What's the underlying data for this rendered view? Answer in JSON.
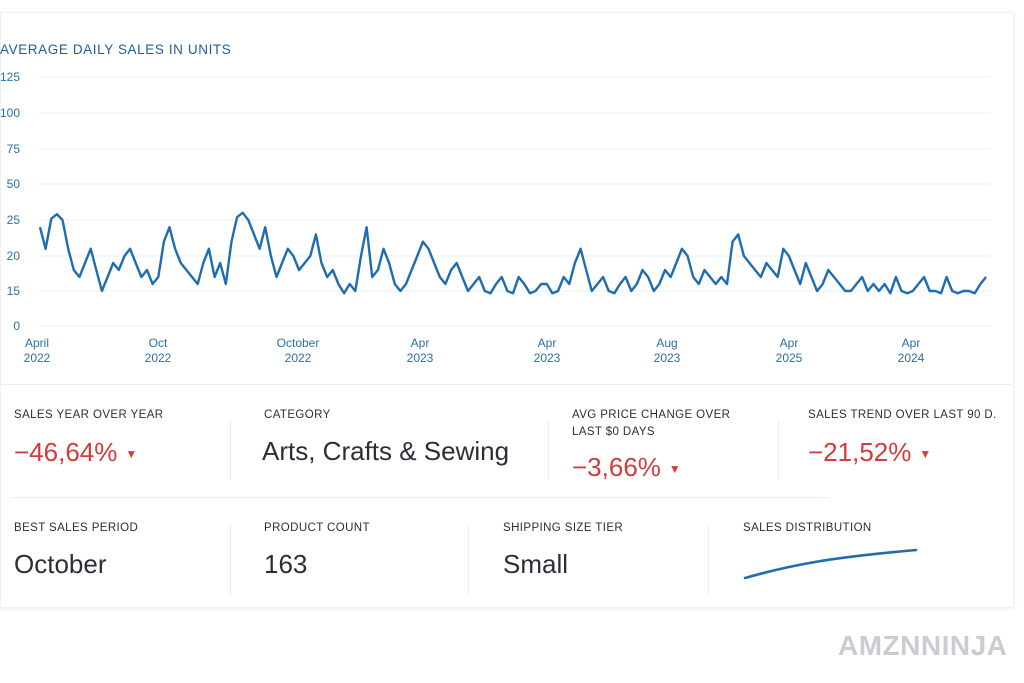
{
  "chart_data": {
    "type": "line",
    "title": "AVERAGE DAILY SALES IN UNITS",
    "xlabel": "",
    "ylabel": "",
    "y_tick_labels": [
      "125",
      "100",
      "75",
      "50",
      "25",
      "20",
      "15",
      "0"
    ],
    "x_tick_labels": [
      {
        "month": "April",
        "year": "2022"
      },
      {
        "month": "Oct",
        "year": "2022"
      },
      {
        "month": "October",
        "year": "2022"
      },
      {
        "month": "Apr",
        "year": "2023"
      },
      {
        "month": "Apr",
        "year": "2023"
      },
      {
        "month": "Aug",
        "year": "2023"
      },
      {
        "month": "Apr",
        "year": "2025"
      },
      {
        "month": "Apr",
        "year": "2024"
      }
    ],
    "grid": true,
    "series": [
      {
        "values": [
          24,
          21,
          26,
          29,
          25,
          21,
          18,
          17,
          19,
          21,
          18,
          15,
          17,
          19,
          18,
          20,
          21,
          19,
          17,
          18,
          16,
          17,
          22,
          24,
          21,
          19,
          18,
          17,
          16,
          19,
          21,
          17,
          19,
          16,
          22,
          27,
          30,
          25,
          23,
          21,
          24,
          20,
          17,
          19,
          21,
          20,
          18,
          19,
          20,
          23,
          19,
          17,
          18,
          16,
          14,
          16,
          15,
          20,
          24,
          17,
          18,
          21,
          19,
          16,
          15,
          16,
          18,
          20,
          22,
          21,
          19,
          17,
          16,
          18,
          19,
          17,
          15,
          16,
          17,
          15,
          14,
          16,
          17,
          15,
          14,
          17,
          16,
          14,
          15,
          16,
          16,
          14,
          15,
          17,
          16,
          19,
          21,
          18,
          15,
          16,
          17,
          15,
          14,
          16,
          17,
          15,
          16,
          18,
          17,
          15,
          16,
          18,
          17,
          19,
          21,
          20,
          17,
          16,
          18,
          17,
          16,
          17,
          16,
          22,
          23,
          20,
          19,
          18,
          17,
          19,
          18,
          17,
          21,
          20,
          18,
          16,
          19,
          17,
          15,
          16,
          18,
          17,
          16,
          15,
          15,
          16,
          17,
          15,
          16,
          15,
          16,
          14,
          17,
          15,
          14,
          15,
          16,
          17,
          15,
          15,
          14,
          17,
          15,
          14,
          15,
          15,
          14,
          16,
          17
        ]
      }
    ]
  },
  "metrics": {
    "sales_yoy": {
      "label": "SALES YEAR OVER YEAR",
      "value": "−46,64%"
    },
    "category": {
      "label": "CATEGORY",
      "value": "Arts, Crafts & Sewing"
    },
    "avg_price_change": {
      "label": "AVG PRICE CHANGE OVER LAST $0 DAYS",
      "value": "−3,66%"
    },
    "sales_trend": {
      "label": "SALES TREND OVER LAST 90 D.",
      "value": "−21,52%"
    },
    "best_period": {
      "label": "BEST SALES PERIOD",
      "value": "October"
    },
    "product_count": {
      "label": "PRODUCT COUNT",
      "value": "163"
    },
    "shipping_tier": {
      "label": "SHIPPING SIZE TIER",
      "value": "Small"
    },
    "sales_distribution": {
      "label": "SALES DISTRIBUTION"
    }
  },
  "icons": {
    "down_arrow": "caret-down-icon"
  },
  "colors": {
    "line": "#1f6db0",
    "negative": "#d23c3c",
    "title": "#1f5f99"
  },
  "watermark": "AMZNNINJA"
}
